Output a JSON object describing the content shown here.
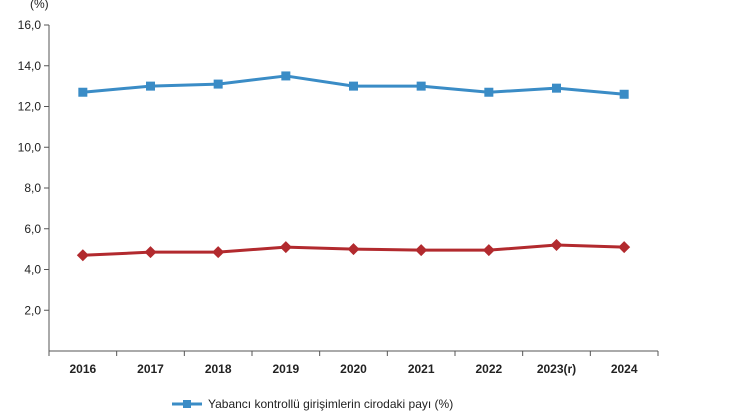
{
  "chart_data": {
    "type": "line",
    "ylabel": "(%)",
    "ylim": [
      0,
      16
    ],
    "yticks": [
      2.0,
      4.0,
      6.0,
      8.0,
      10.0,
      12.0,
      14.0,
      16.0
    ],
    "ytick_labels": [
      "2,0",
      "4,0",
      "6,0",
      "8,0",
      "10,0",
      "12,0",
      "14,0",
      "16,0"
    ],
    "categories": [
      "2016",
      "2017",
      "2018",
      "2019",
      "2020",
      "2021",
      "2022",
      "2023(r)",
      "2024"
    ],
    "grid": false,
    "legend_position": "bottom",
    "series": [
      {
        "name": "Yabancı kontrollü girişimlerin cirodaki payı (%)",
        "color": "#3a8cc6",
        "marker": "square",
        "values": [
          12.7,
          13.0,
          13.1,
          13.5,
          13.0,
          13.0,
          12.7,
          12.9,
          12.6
        ]
      },
      {
        "name": "",
        "color": "#b22a2e",
        "marker": "diamond",
        "values": [
          4.7,
          4.85,
          4.85,
          5.1,
          5.0,
          4.95,
          4.95,
          5.2,
          5.1
        ]
      }
    ]
  }
}
